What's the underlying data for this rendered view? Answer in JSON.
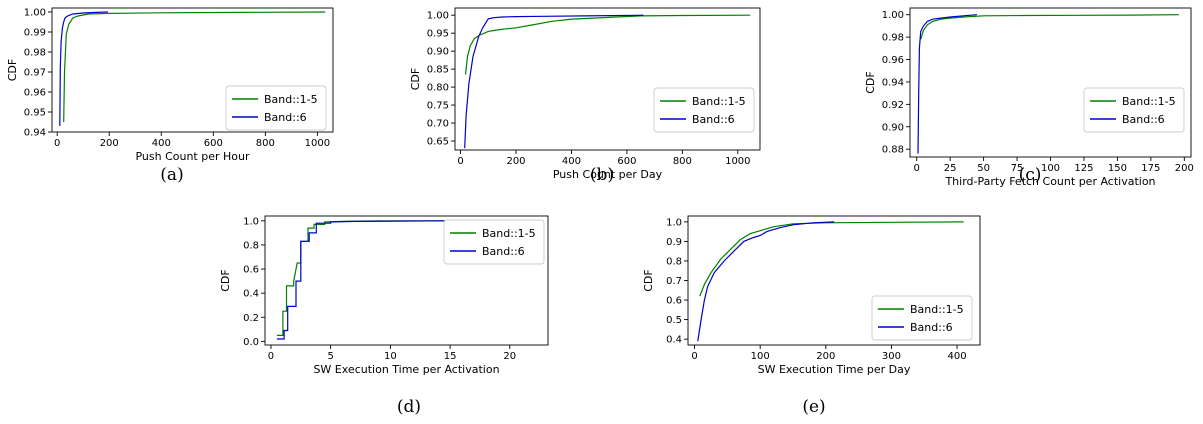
{
  "colors": {
    "band_1_5": "#008000",
    "band_6": "#0000cc",
    "axis": "#000000"
  },
  "chart_data": [
    {
      "type": "line",
      "caption": "(a)",
      "xlabel": "Push Count per Hour",
      "ylabel": "CDF",
      "xlim": [
        -20,
        1060
      ],
      "ylim": [
        0.94,
        1.002
      ],
      "xticks": [
        0,
        200,
        400,
        600,
        800,
        1000
      ],
      "yticks": [
        0.94,
        0.95,
        0.96,
        0.97,
        0.98,
        0.99,
        1.0
      ],
      "xtick_labels": [
        "0",
        "200",
        "400",
        "600",
        "800",
        "1000"
      ],
      "ytick_labels": [
        "0.94",
        "0.95",
        "0.96",
        "0.97",
        "0.98",
        "0.99",
        "1.00"
      ],
      "grid": false,
      "legend_position": "bottom-right",
      "series": [
        {
          "name": "Band::1-5",
          "color": "#008000",
          "x": [
            25,
            28,
            35,
            45,
            60,
            80,
            120,
            200,
            400,
            700,
            1030
          ],
          "y": [
            0.945,
            0.97,
            0.989,
            0.994,
            0.997,
            0.998,
            0.999,
            0.9993,
            0.9996,
            0.9998,
            1.0
          ]
        },
        {
          "name": "Band::6",
          "color": "#0000cc",
          "x": [
            10,
            12,
            15,
            20,
            25,
            30,
            40,
            60,
            100,
            150,
            195
          ],
          "y": [
            0.943,
            0.972,
            0.985,
            0.992,
            0.995,
            0.997,
            0.998,
            0.999,
            0.9995,
            0.9998,
            1.0
          ]
        }
      ]
    },
    {
      "type": "line",
      "caption": "(b)",
      "xlabel": "Push Count per Day",
      "ylabel": "CDF",
      "xlim": [
        -20,
        1080
      ],
      "ylim": [
        0.625,
        1.02
      ],
      "xticks": [
        0,
        200,
        400,
        600,
        800,
        1000
      ],
      "yticks": [
        0.65,
        0.7,
        0.75,
        0.8,
        0.85,
        0.9,
        0.95,
        1.0
      ],
      "xtick_labels": [
        "0",
        "200",
        "400",
        "600",
        "800",
        "1000"
      ],
      "ytick_labels": [
        "0.65",
        "0.70",
        "0.75",
        "0.80",
        "0.85",
        "0.90",
        "0.95",
        "1.00"
      ],
      "grid": false,
      "legend_position": "bottom-right",
      "series": [
        {
          "name": "Band::1-5",
          "color": "#008000",
          "x": [
            18,
            25,
            35,
            50,
            70,
            100,
            140,
            200,
            260,
            330,
            400,
            480,
            560,
            650,
            800,
            1045
          ],
          "y": [
            0.835,
            0.885,
            0.915,
            0.935,
            0.945,
            0.955,
            0.96,
            0.965,
            0.973,
            0.983,
            0.989,
            0.992,
            0.995,
            0.998,
            0.999,
            1.0
          ]
        },
        {
          "name": "Band::6",
          "color": "#0000cc",
          "x": [
            15,
            20,
            30,
            45,
            65,
            80,
            100,
            120,
            150,
            200,
            300,
            450,
            660
          ],
          "y": [
            0.63,
            0.72,
            0.81,
            0.885,
            0.94,
            0.965,
            0.99,
            0.993,
            0.995,
            0.996,
            0.997,
            0.998,
            1.0
          ]
        }
      ]
    },
    {
      "type": "line",
      "caption": "(c)",
      "xlabel": "Third-Party Fetch Count per Activation",
      "ylabel": "CDF",
      "xlim": [
        -5,
        205
      ],
      "ylim": [
        0.873,
        1.006
      ],
      "xticks": [
        0,
        25,
        50,
        75,
        100,
        125,
        150,
        175,
        200
      ],
      "yticks": [
        0.88,
        0.9,
        0.92,
        0.94,
        0.96,
        0.98,
        1.0
      ],
      "xtick_labels": [
        "0",
        "25",
        "50",
        "75",
        "100",
        "125",
        "150",
        "175",
        "200"
      ],
      "ytick_labels": [
        "0.88",
        "0.90",
        "0.92",
        "0.94",
        "0.96",
        "0.98",
        "1.00"
      ],
      "grid": false,
      "legend_position": "bottom-right",
      "series": [
        {
          "name": "Band::1-5",
          "color": "#008000",
          "x": [
            3,
            5,
            8,
            12,
            18,
            25,
            35,
            50,
            80,
            120,
            160,
            196
          ],
          "y": [
            0.978,
            0.986,
            0.991,
            0.994,
            0.996,
            0.997,
            0.998,
            0.999,
            0.9993,
            0.9995,
            0.9997,
            1.0
          ]
        },
        {
          "name": "Band::6",
          "color": "#0000cc",
          "x": [
            1,
            1.5,
            2,
            3,
            5,
            8,
            12,
            18,
            25,
            35,
            45
          ],
          "y": [
            0.876,
            0.93,
            0.97,
            0.985,
            0.99,
            0.994,
            0.996,
            0.997,
            0.998,
            0.999,
            1.0
          ]
        }
      ]
    },
    {
      "type": "line",
      "caption": "(d)",
      "xlabel": "SW Execution Time per Activation",
      "ylabel": "CDF",
      "xlim": [
        -0.5,
        23.2
      ],
      "ylim": [
        -0.03,
        1.04
      ],
      "xticks": [
        0,
        5,
        10,
        15,
        20
      ],
      "yticks": [
        0.0,
        0.2,
        0.4,
        0.6,
        0.8,
        1.0
      ],
      "xtick_labels": [
        "0",
        "5",
        "10",
        "15",
        "20"
      ],
      "ytick_labels": [
        "0.0",
        "0.2",
        "0.4",
        "0.6",
        "0.8",
        "1.0"
      ],
      "grid": false,
      "legend_position": "top-right",
      "series": [
        {
          "name": "Band::1-5",
          "color": "#008000",
          "x": [
            0.5,
            1.0,
            1.0,
            1.3,
            1.3,
            1.9,
            1.9,
            2.2,
            2.5,
            2.5,
            3.1,
            3.1,
            3.6,
            3.6,
            4.5,
            4.5,
            6.0,
            10.0,
            22.0
          ],
          "y": [
            0.05,
            0.05,
            0.25,
            0.25,
            0.46,
            0.46,
            0.5,
            0.65,
            0.65,
            0.83,
            0.83,
            0.94,
            0.94,
            0.97,
            0.97,
            0.99,
            0.995,
            1.0,
            1.0
          ]
        },
        {
          "name": "Band::6",
          "color": "#0000cc",
          "x": [
            0.5,
            1.1,
            1.1,
            1.4,
            1.4,
            2.1,
            2.1,
            2.5,
            2.5,
            3.2,
            3.2,
            3.8,
            3.8,
            5.0,
            5.0,
            7.0,
            14.5
          ],
          "y": [
            0.02,
            0.02,
            0.09,
            0.09,
            0.29,
            0.29,
            0.5,
            0.5,
            0.83,
            0.83,
            0.9,
            0.9,
            0.98,
            0.98,
            0.99,
            0.995,
            1.0
          ]
        }
      ]
    },
    {
      "type": "line",
      "caption": "(e)",
      "xlabel": "SW Execution Time per Day",
      "ylabel": "CDF",
      "xlim": [
        -10,
        435
      ],
      "ylim": [
        0.37,
        1.03
      ],
      "xticks": [
        0,
        100,
        200,
        300,
        400
      ],
      "yticks": [
        0.4,
        0.5,
        0.6,
        0.7,
        0.8,
        0.9,
        1.0
      ],
      "xtick_labels": [
        "0",
        "100",
        "200",
        "300",
        "400"
      ],
      "ytick_labels": [
        "0.4",
        "0.5",
        "0.6",
        "0.7",
        "0.8",
        "0.9",
        "1.0"
      ],
      "grid": false,
      "legend_position": "bottom-right",
      "series": [
        {
          "name": "Band::1-5",
          "color": "#008000",
          "x": [
            8,
            15,
            25,
            40,
            55,
            70,
            85,
            100,
            120,
            150,
            200,
            300,
            410
          ],
          "y": [
            0.62,
            0.68,
            0.74,
            0.81,
            0.86,
            0.91,
            0.94,
            0.955,
            0.975,
            0.99,
            0.995,
            0.998,
            1.0
          ]
        },
        {
          "name": "Band::6",
          "color": "#0000cc",
          "x": [
            5,
            10,
            15,
            20,
            30,
            45,
            60,
            75,
            90,
            100,
            110,
            130,
            150,
            180,
            213
          ],
          "y": [
            0.39,
            0.5,
            0.6,
            0.67,
            0.74,
            0.8,
            0.85,
            0.9,
            0.92,
            0.93,
            0.95,
            0.97,
            0.985,
            0.995,
            1.0
          ]
        }
      ]
    }
  ]
}
